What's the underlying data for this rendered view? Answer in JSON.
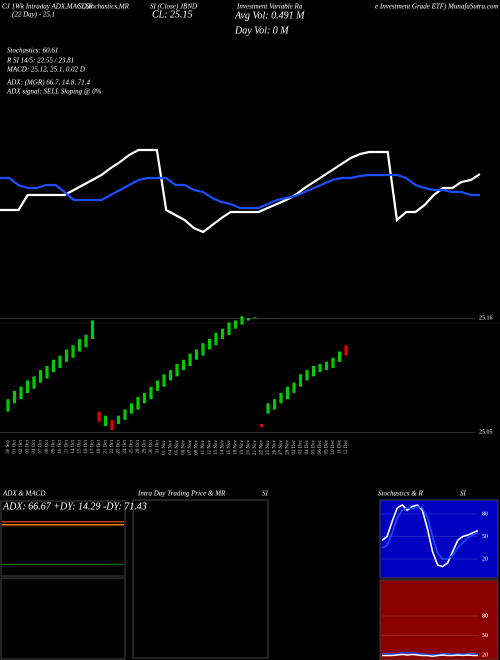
{
  "chart_data": [
    {
      "type": "line",
      "annotations": [
        "CJ 1Wk Intraday ADX,MACD,R",
        "SI,Stochastics,MR",
        "SI (Close) JBND",
        "(22 Day) - 25.1",
        "CL: 25.15",
        "Investment Variable Ra",
        "Avg Vol: 0.491 M",
        "Day Vol: 0  M",
        "e Investment Grade ETF) MunafaSutra.com",
        "Stochastics: 60.61",
        "R  SI 14/5: 22.55 / 23.81",
        "MACD: 25.12, 25.1, 0.02  D",
        "ADX:  (MGR) 66.7, 14.8, 71.4",
        "ADX  signal: SELL Sloping @ 0%",
        "ADX  & MACD",
        "Intra  Day Trading Price  & MR",
        "SI",
        "Stochastics & R",
        "SI"
      ],
      "ylim": [
        0,
        100
      ],
      "series": [
        {
          "color": "#ffffff",
          "values": [
            30,
            30,
            30,
            45,
            45,
            45,
            45,
            45,
            50,
            55,
            60,
            65,
            72,
            78,
            85,
            90,
            90,
            90,
            30,
            25,
            20,
            12,
            8,
            15,
            22,
            28,
            28,
            28,
            28,
            32,
            36,
            40,
            45,
            52,
            58,
            64,
            70,
            76,
            82,
            86,
            88,
            88,
            88,
            20,
            28,
            28,
            35,
            45,
            52,
            52,
            58,
            60,
            66
          ]
        },
        {
          "color": "#1a4fff",
          "values": [
            62,
            62,
            55,
            52,
            52,
            55,
            55,
            48,
            40,
            40,
            40,
            40,
            45,
            50,
            55,
            60,
            62,
            62,
            62,
            55,
            55,
            50,
            48,
            42,
            38,
            36,
            32,
            32,
            32,
            36,
            40,
            42,
            44,
            48,
            52,
            56,
            60,
            62,
            62,
            64,
            65,
            65,
            65,
            65,
            62,
            55,
            52,
            50,
            50,
            48,
            48,
            45,
            45
          ]
        }
      ]
    },
    {
      "type": "candlestick",
      "categories": [
        "30 Sep",
        "01 Oct",
        "02 Oct",
        "03 Oct",
        "04 Oct",
        "07 Oct",
        "08 Oct",
        "09 Oct",
        "10 Oct",
        "11 Oct",
        "14 Oct",
        "15 Oct",
        "16 Oct",
        "17 Oct",
        "18 Oct",
        "21 Oct",
        "22 Oct",
        "23 Oct",
        "24 Oct",
        "25 Oct",
        "28 Oct",
        "29 Oct",
        "30 Oct",
        "31 Oct",
        "01 Nov",
        "04 Nov",
        "05 Nov",
        "06 Nov",
        "07 Nov",
        "08 Nov",
        "11 Nov",
        "12 Nov",
        "13 Nov",
        "14 Nov",
        "15 Nov",
        "18 Nov",
        "19 Nov",
        "20 Nov",
        "21 Nov",
        "22 Nov",
        "25 Nov",
        "26 Nov",
        "27 Nov",
        "29 Nov",
        "02 Dec",
        "03 Dec",
        "04 Dec",
        "05 Dec",
        "06 Dec",
        "09 Dec",
        "10 Dec",
        "11 Dec",
        "12 Dec"
      ],
      "open": [
        25.07,
        25.078,
        25.082,
        25.088,
        25.092,
        25.098,
        25.102,
        25.108,
        25.112,
        25.118,
        25.122,
        25.128,
        25.132,
        25.14,
        25.07,
        25.056,
        25.062,
        25.058,
        25.062,
        25.068,
        25.072,
        25.078,
        25.082,
        25.09,
        25.094,
        25.1,
        25.104,
        25.11,
        25.114,
        25.12,
        25.124,
        25.13,
        25.134,
        25.14,
        25.144,
        25.15,
        25.154,
        25.158,
        25.16,
        25.058,
        25.068,
        25.072,
        25.078,
        25.082,
        25.088,
        25.094,
        25.1,
        25.104,
        25.108,
        25.11,
        25.112,
        25.118,
        25.134
      ],
      "close": [
        25.082,
        25.09,
        25.094,
        25.1,
        25.104,
        25.11,
        25.114,
        25.12,
        25.124,
        25.13,
        25.134,
        25.14,
        25.144,
        25.158,
        25.06,
        25.066,
        25.052,
        25.066,
        25.072,
        25.078,
        25.084,
        25.088,
        25.094,
        25.1,
        25.106,
        25.11,
        25.116,
        25.12,
        25.126,
        25.13,
        25.136,
        25.14,
        25.146,
        25.15,
        25.156,
        25.158,
        25.162,
        25.16,
        25.161,
        25.055,
        25.078,
        25.082,
        25.088,
        25.094,
        25.098,
        25.106,
        25.11,
        25.114,
        25.116,
        25.118,
        25.122,
        25.128,
        25.124
      ],
      "ylim": [
        25.03,
        25.17
      ],
      "yticks": [
        25.16,
        25.05
      ],
      "up_color": "#00cc00",
      "down_color": "#dd0000"
    },
    {
      "type": "line",
      "title": "ADX: 66.67 +DY: 14.29 -DY: 71.43",
      "ylim": [
        0,
        100
      ],
      "series": [
        {
          "color": "#c04000",
          "values": [
            71,
            71,
            71,
            71,
            71,
            71,
            71,
            71,
            71,
            71
          ]
        },
        {
          "color": "#ff8000",
          "values": [
            67,
            67,
            67,
            67,
            67,
            67,
            67,
            67,
            67,
            67
          ]
        },
        {
          "color": "#006600",
          "values": [
            14,
            14,
            14,
            14,
            14,
            14,
            14,
            14,
            14,
            14
          ]
        }
      ]
    },
    {
      "type": "line",
      "ylim": [
        0,
        100
      ],
      "yticks": [
        80,
        50,
        20
      ],
      "series": [
        {
          "color": "#ffffff",
          "values": [
            45,
            50,
            70,
            88,
            92,
            85,
            90,
            92,
            85,
            60,
            30,
            12,
            10,
            15,
            30,
            45,
            50,
            52,
            55,
            58
          ]
        },
        {
          "color": "#1a4fff",
          "values": [
            35,
            38,
            55,
            75,
            85,
            88,
            87,
            90,
            88,
            75,
            50,
            28,
            20,
            20,
            25,
            35,
            42,
            48,
            52,
            55
          ]
        }
      ]
    },
    {
      "type": "line",
      "ylim": [
        0,
        100
      ],
      "yticks": [
        80,
        50,
        20
      ],
      "series": [
        {
          "color": "#1a4fff",
          "values": [
            22,
            22,
            21,
            22,
            24,
            23,
            24,
            22,
            22,
            21,
            20,
            21,
            22,
            22,
            21,
            22,
            21,
            22,
            22,
            21
          ]
        },
        {
          "color": "#ffffff",
          "values": [
            19,
            19,
            19,
            20,
            21,
            20,
            21,
            20,
            19,
            19,
            18,
            19,
            20,
            19,
            19,
            20,
            19,
            20,
            19,
            19
          ]
        }
      ]
    }
  ]
}
